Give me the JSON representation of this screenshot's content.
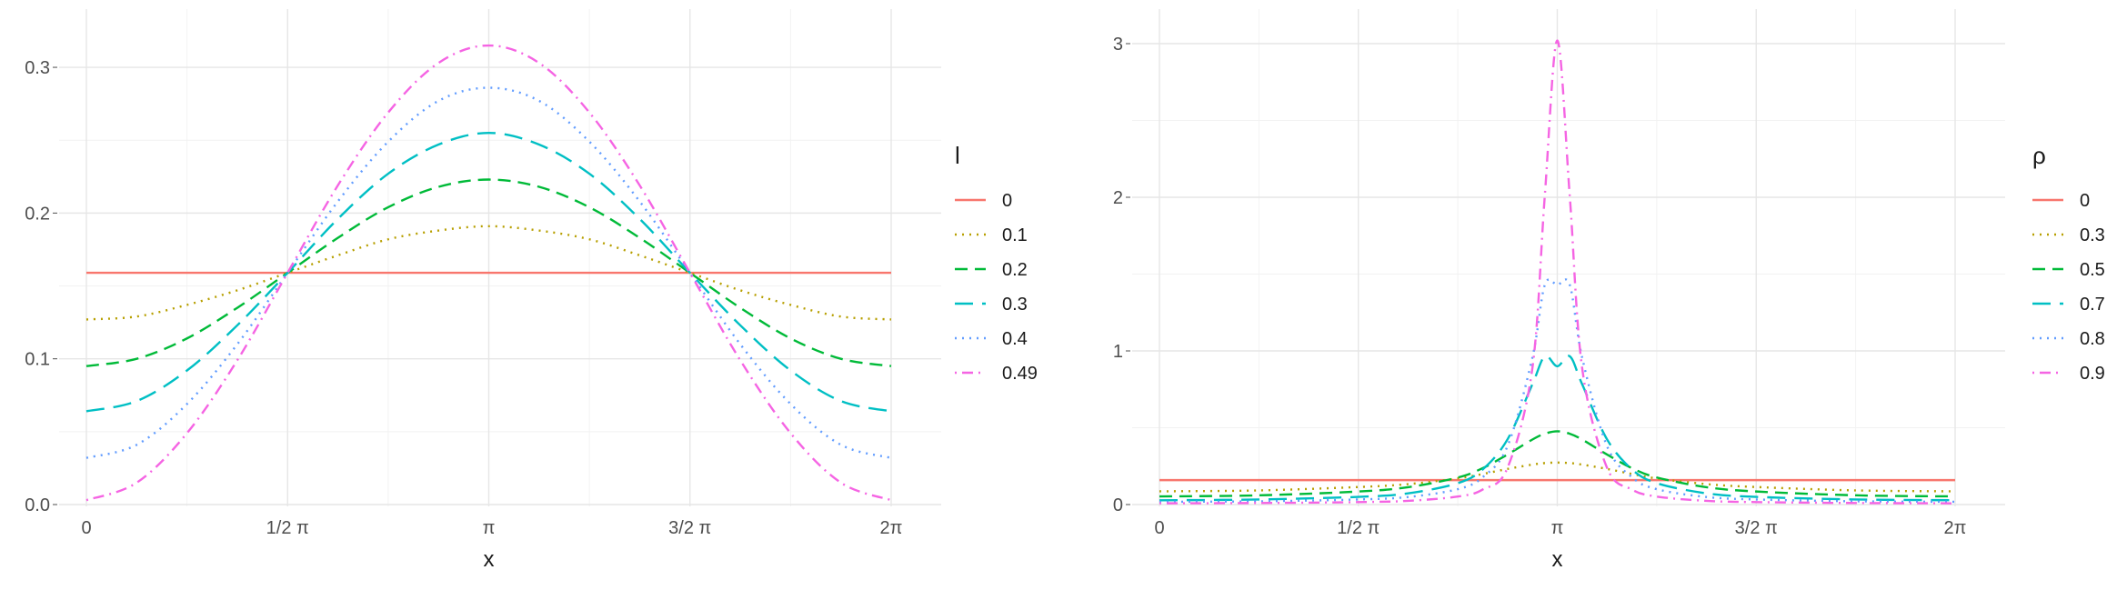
{
  "chart_data": [
    {
      "type": "line",
      "title": "",
      "xlabel": "x",
      "ylabel": "",
      "xlim": [
        0,
        6.2832
      ],
      "ylim": [
        0,
        0.32
      ],
      "grid": true,
      "legend_position": "right",
      "legend_title": "l",
      "x_ticks": [
        {
          "value": 0,
          "label": "0"
        },
        {
          "value": 1.5708,
          "label": "1/2 π"
        },
        {
          "value": 3.1416,
          "label": "π"
        },
        {
          "value": 4.7124,
          "label": "3/2 π"
        },
        {
          "value": 6.2832,
          "label": "2π"
        }
      ],
      "y_ticks": [
        {
          "value": 0.0,
          "label": "0.0"
        },
        {
          "value": 0.1,
          "label": "0.1"
        },
        {
          "value": 0.2,
          "label": "0.2"
        },
        {
          "value": 0.3,
          "label": "0.3"
        }
      ],
      "x": [
        0,
        0.3927,
        0.7854,
        1.1781,
        1.5708,
        1.9635,
        2.3562,
        2.7489,
        3.1416,
        3.5343,
        3.927,
        4.3197,
        4.7124,
        5.1051,
        5.4978,
        5.8905,
        6.2832
      ],
      "series": [
        {
          "name": "0",
          "color": "#F8766D",
          "dash": "solid",
          "values": [
            0.159,
            0.159,
            0.159,
            0.159,
            0.159,
            0.159,
            0.159,
            0.159,
            0.159,
            0.159,
            0.159,
            0.159,
            0.159,
            0.159,
            0.159,
            0.159,
            0.159
          ]
        },
        {
          "name": "0.1",
          "color": "#B79F00",
          "dash": "dotted",
          "values": [
            0.127,
            0.129,
            0.137,
            0.147,
            0.159,
            0.171,
            0.182,
            0.188,
            0.191,
            0.188,
            0.182,
            0.171,
            0.159,
            0.147,
            0.137,
            0.129,
            0.127
          ]
        },
        {
          "name": "0.2",
          "color": "#00BA38",
          "dash": "dashed",
          "values": [
            0.095,
            0.1,
            0.114,
            0.135,
            0.159,
            0.183,
            0.204,
            0.218,
            0.223,
            0.218,
            0.204,
            0.183,
            0.159,
            0.135,
            0.114,
            0.1,
            0.095
          ]
        },
        {
          "name": "0.3",
          "color": "#00BFC4",
          "dash": "longdash",
          "values": [
            0.064,
            0.071,
            0.092,
            0.123,
            0.159,
            0.196,
            0.227,
            0.247,
            0.255,
            0.247,
            0.227,
            0.196,
            0.159,
            0.123,
            0.092,
            0.071,
            0.064
          ]
        },
        {
          "name": "0.4",
          "color": "#619CFF",
          "dash": "dotted",
          "values": [
            0.032,
            0.041,
            0.069,
            0.11,
            0.159,
            0.208,
            0.249,
            0.277,
            0.286,
            0.277,
            0.249,
            0.208,
            0.159,
            0.11,
            0.069,
            0.041,
            0.032
          ]
        },
        {
          "name": "0.49",
          "color": "#F564E3",
          "dash": "dotdash",
          "values": [
            0.003,
            0.015,
            0.049,
            0.099,
            0.159,
            0.219,
            0.269,
            0.303,
            0.315,
            0.303,
            0.269,
            0.219,
            0.159,
            0.099,
            0.049,
            0.015,
            0.003
          ]
        }
      ]
    },
    {
      "type": "line",
      "title": "",
      "xlabel": "x",
      "ylabel": "",
      "xlim": [
        0,
        6.2832
      ],
      "ylim": [
        0,
        3.0
      ],
      "grid": true,
      "legend_position": "right",
      "legend_title": "ρ",
      "x_ticks": [
        {
          "value": 0,
          "label": "0"
        },
        {
          "value": 1.5708,
          "label": "1/2 π"
        },
        {
          "value": 3.1416,
          "label": "π"
        },
        {
          "value": 4.7124,
          "label": "3/2 π"
        },
        {
          "value": 6.2832,
          "label": "2π"
        }
      ],
      "y_ticks": [
        {
          "value": 0,
          "label": "0"
        },
        {
          "value": 1,
          "label": "1"
        },
        {
          "value": 2,
          "label": "2"
        },
        {
          "value": 3,
          "label": "3"
        }
      ],
      "x": [
        0,
        0.785,
        1.571,
        1.963,
        2.356,
        2.553,
        2.749,
        2.945,
        3.043,
        3.1416,
        3.24,
        3.338,
        3.534,
        3.731,
        3.927,
        4.32,
        4.712,
        5.498,
        6.2832
      ],
      "series": [
        {
          "name": "0",
          "color": "#F8766D",
          "dash": "solid",
          "values": [
            0.159,
            0.159,
            0.159,
            0.159,
            0.159,
            0.159,
            0.159,
            0.159,
            0.159,
            0.159,
            0.159,
            0.159,
            0.159,
            0.159,
            0.159,
            0.159,
            0.159,
            0.159,
            0.159
          ]
        },
        {
          "name": "0.3",
          "color": "#B79F00",
          "dash": "dotted",
          "values": [
            0.086,
            0.092,
            0.114,
            0.133,
            0.17,
            0.199,
            0.232,
            0.26,
            0.27,
            0.273,
            0.27,
            0.26,
            0.232,
            0.199,
            0.17,
            0.133,
            0.114,
            0.092,
            0.086
          ]
        },
        {
          "name": "0.5",
          "color": "#00BA38",
          "dash": "dashed",
          "values": [
            0.053,
            0.06,
            0.085,
            0.113,
            0.176,
            0.237,
            0.326,
            0.423,
            0.461,
            0.477,
            0.461,
            0.423,
            0.326,
            0.237,
            0.176,
            0.113,
            0.085,
            0.06,
            0.053
          ]
        },
        {
          "name": "0.7",
          "color": "#00BFC4",
          "dash": "longdash",
          "values": [
            0.028,
            0.033,
            0.05,
            0.073,
            0.139,
            0.229,
            0.425,
            0.783,
            0.965,
            0.9,
            0.965,
            0.783,
            0.425,
            0.229,
            0.139,
            0.073,
            0.05,
            0.033,
            0.028
          ]
        },
        {
          "name": "0.8",
          "color": "#619CFF",
          "dash": "dotted",
          "values": [
            0.018,
            0.021,
            0.033,
            0.049,
            0.1,
            0.178,
            0.381,
            0.956,
            1.43,
            1.43,
            1.43,
            0.956,
            0.381,
            0.178,
            0.1,
            0.049,
            0.033,
            0.021,
            0.018
          ]
        },
        {
          "name": "0.9",
          "color": "#F564E3",
          "dash": "dotdash",
          "values": [
            0.008,
            0.01,
            0.016,
            0.024,
            0.052,
            0.098,
            0.24,
            0.888,
            2.01,
            3.02,
            2.01,
            0.888,
            0.24,
            0.098,
            0.052,
            0.024,
            0.016,
            0.01,
            0.008
          ]
        }
      ]
    }
  ]
}
